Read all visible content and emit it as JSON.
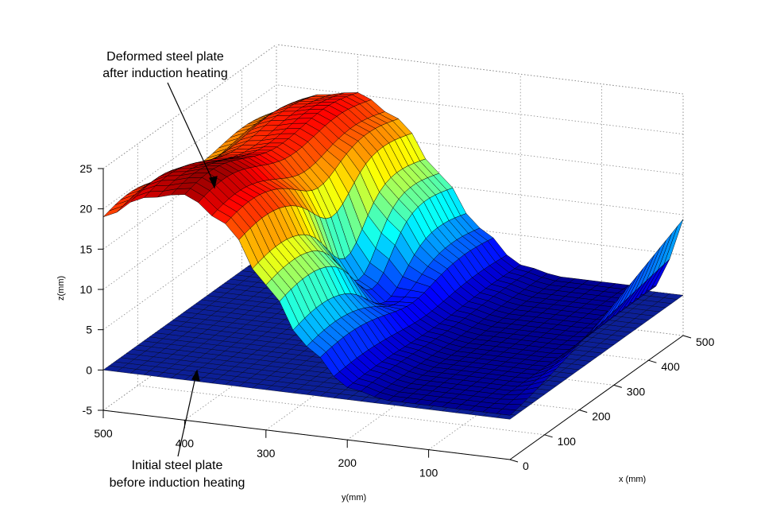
{
  "chart_data": {
    "type": "surface",
    "xlabel": "x (mm)",
    "ylabel": "y(mm)",
    "zlabel": "z(mm)",
    "xlim": [
      0,
      500
    ],
    "ylim": [
      0,
      500
    ],
    "zlim": [
      -5,
      25
    ],
    "x_ticks": [
      "0",
      "100",
      "200",
      "300",
      "400",
      "500"
    ],
    "y_ticks": [
      "100",
      "200",
      "300",
      "400",
      "500"
    ],
    "z_ticks": [
      "-5",
      "0",
      "5",
      "10",
      "15",
      "20",
      "25"
    ],
    "grid": true,
    "colormap": "jet",
    "series": [
      {
        "name": "Deformed steel plate after induction heating",
        "surface": "deformed",
        "z_max_approx": 24,
        "profile_along_y": [
          {
            "y": 500,
            "z": 19
          },
          {
            "y": 450,
            "z": 22
          },
          {
            "y": 400,
            "z": 23
          },
          {
            "y": 350,
            "z": 20
          },
          {
            "y": 300,
            "z": 13
          },
          {
            "y": 250,
            "z": 6
          },
          {
            "y": 200,
            "z": 1.5
          },
          {
            "y": 150,
            "z": 0.5
          },
          {
            "y": 100,
            "z": 0.5
          },
          {
            "y": 50,
            "z": 0.5
          },
          {
            "y": 0,
            "z": 0.5
          }
        ]
      },
      {
        "name": "Initial steel plate before induction heating",
        "surface": "flat",
        "z": 0
      }
    ],
    "annotations": {
      "deformed_line1": "Deformed steel plate",
      "deformed_line2": "after induction heating",
      "initial_line1": "Initial steel plate",
      "initial_line2": "before induction heating"
    }
  }
}
